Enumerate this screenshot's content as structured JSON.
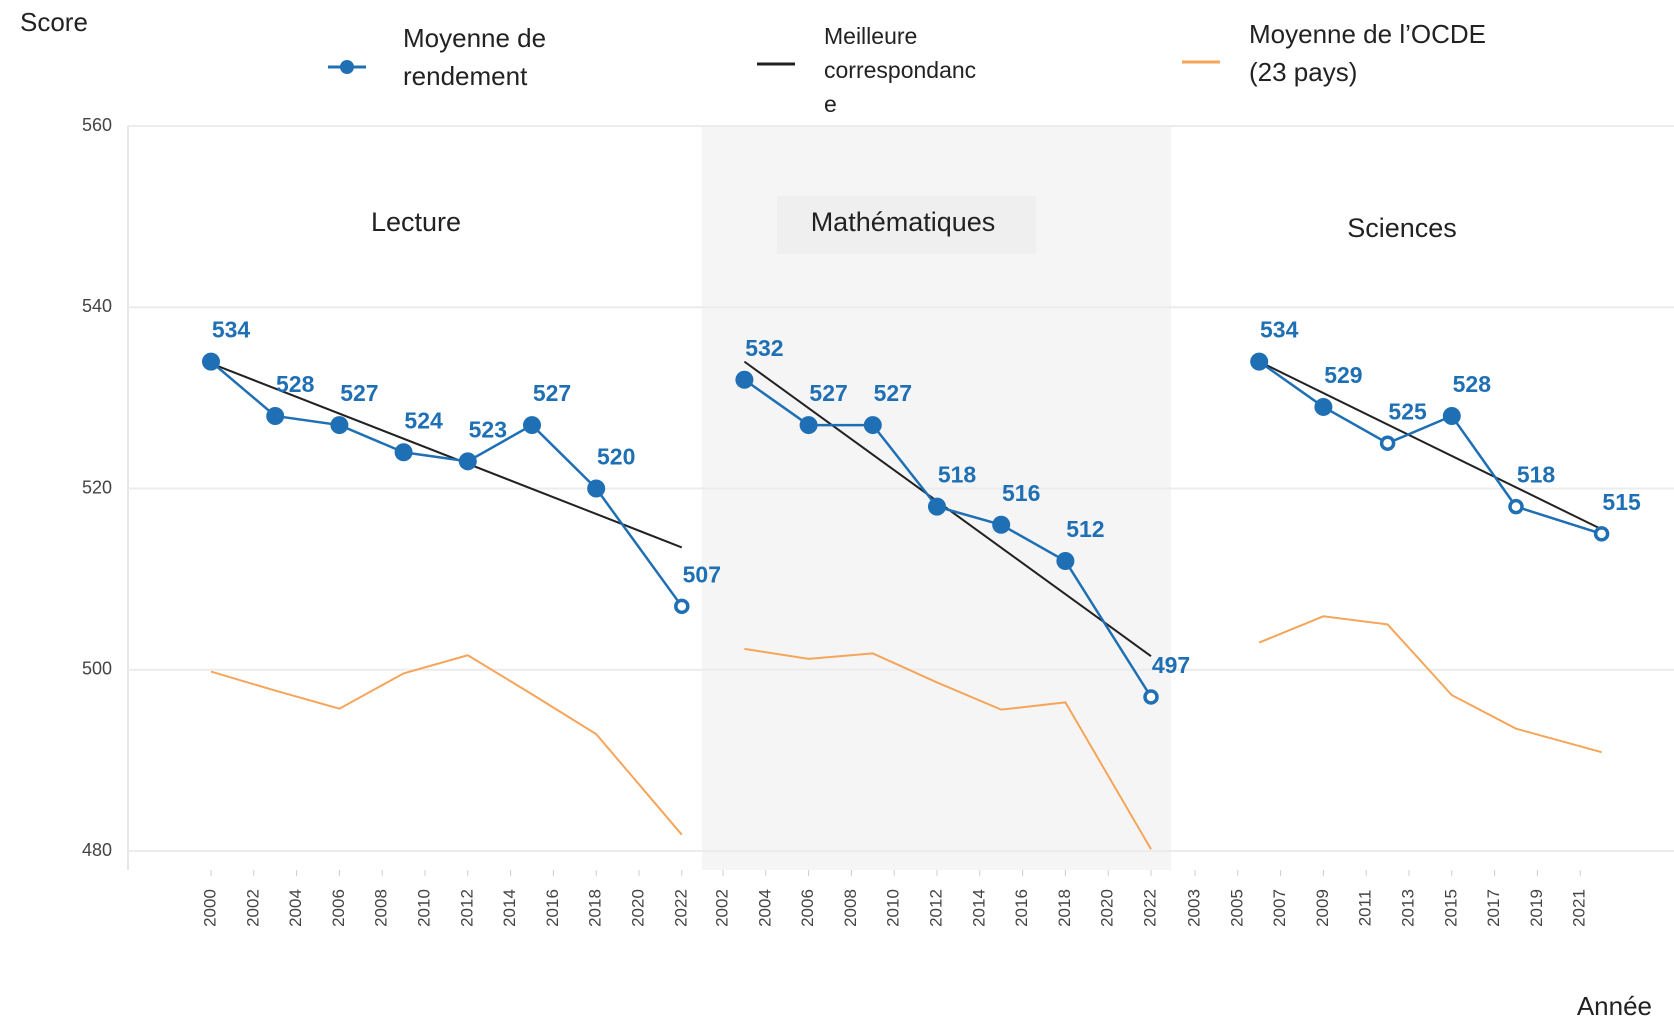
{
  "chart_data": {
    "type": "line",
    "y_label": "Score",
    "x_label": "Année",
    "ylim": [
      480,
      560
    ],
    "yticks": [
      480,
      500,
      520,
      540,
      560
    ],
    "grid": true,
    "panels": [
      {
        "title": "Lecture",
        "xlim": [
          2000,
          2022
        ],
        "xticks": [
          2000,
          2002,
          2004,
          2006,
          2008,
          2010,
          2012,
          2014,
          2016,
          2018,
          2020,
          2022
        ],
        "series": [
          {
            "name": "Moyenne de rendement",
            "color": "#1f6fb5",
            "x": [
              2000,
              2003,
              2006,
              2009,
              2012,
              2015,
              2018,
              2022
            ],
            "values": [
              534,
              528,
              527,
              524,
              523,
              527,
              520,
              507
            ],
            "markers": [
              "filled",
              "filled",
              "filled",
              "filled",
              "filled",
              "filled",
              "filled",
              "open"
            ]
          },
          {
            "name": "Meilleure correspondance",
            "color": "#222222",
            "x": [
              2000,
              2022
            ],
            "values": [
              533.8,
              513.5
            ]
          },
          {
            "name": "Moyenne de l’OCDE (23 pays)",
            "color": "#f5a55a",
            "x": [
              2000,
              2003,
              2006,
              2009,
              2012,
              2015,
              2018,
              2022
            ],
            "values": [
              499.8,
              497.7,
              495.7,
              499.6,
              501.6,
              497.3,
              492.9,
              481.8
            ]
          }
        ]
      },
      {
        "title": "Mathématiques",
        "xlim": [
          2002,
          2022
        ],
        "xticks": [
          2002,
          2004,
          2006,
          2008,
          2010,
          2012,
          2014,
          2016,
          2018,
          2020,
          2022
        ],
        "series": [
          {
            "name": "Moyenne de rendement",
            "color": "#1f6fb5",
            "x": [
              2003,
              2006,
              2009,
              2012,
              2015,
              2018,
              2022
            ],
            "values": [
              532,
              527,
              527,
              518,
              516,
              512,
              497
            ],
            "markers": [
              "filled",
              "filled",
              "filled",
              "filled",
              "filled",
              "filled",
              "open"
            ]
          },
          {
            "name": "Meilleure correspondance",
            "color": "#222222",
            "x": [
              2003,
              2022
            ],
            "values": [
              534,
              501.5
            ]
          },
          {
            "name": "Moyenne de l’OCDE (23 pays)",
            "color": "#f5a55a",
            "x": [
              2003,
              2006,
              2009,
              2012,
              2015,
              2018,
              2022
            ],
            "values": [
              502.3,
              501.2,
              501.8,
              498.6,
              495.6,
              496.4,
              480.2
            ]
          }
        ]
      },
      {
        "title": "Sciences",
        "xlim": [
          2003,
          2022
        ],
        "xticks": [
          2003,
          2005,
          2007,
          2009,
          2011,
          2013,
          2015,
          2017,
          2019,
          2021
        ],
        "series": [
          {
            "name": "Moyenne de rendement",
            "color": "#1f6fb5",
            "x": [
              2006,
              2009,
              2012,
              2015,
              2018,
              2022
            ],
            "values": [
              534,
              529,
              525,
              528,
              518,
              515
            ],
            "markers": [
              "filled",
              "filled",
              "open",
              "filled",
              "open",
              "open"
            ]
          },
          {
            "name": "Meilleure correspondance",
            "color": "#222222",
            "x": [
              2006,
              2022
            ],
            "values": [
              534,
              515.5
            ]
          },
          {
            "name": "Moyenne de l’OCDE (23 pays)",
            "color": "#f5a55a",
            "x": [
              2006,
              2009,
              2012,
              2015,
              2018,
              2022
            ],
            "values": [
              503,
              505.9,
              505,
              497.2,
              493.5,
              490.9
            ]
          }
        ]
      }
    ]
  }
}
